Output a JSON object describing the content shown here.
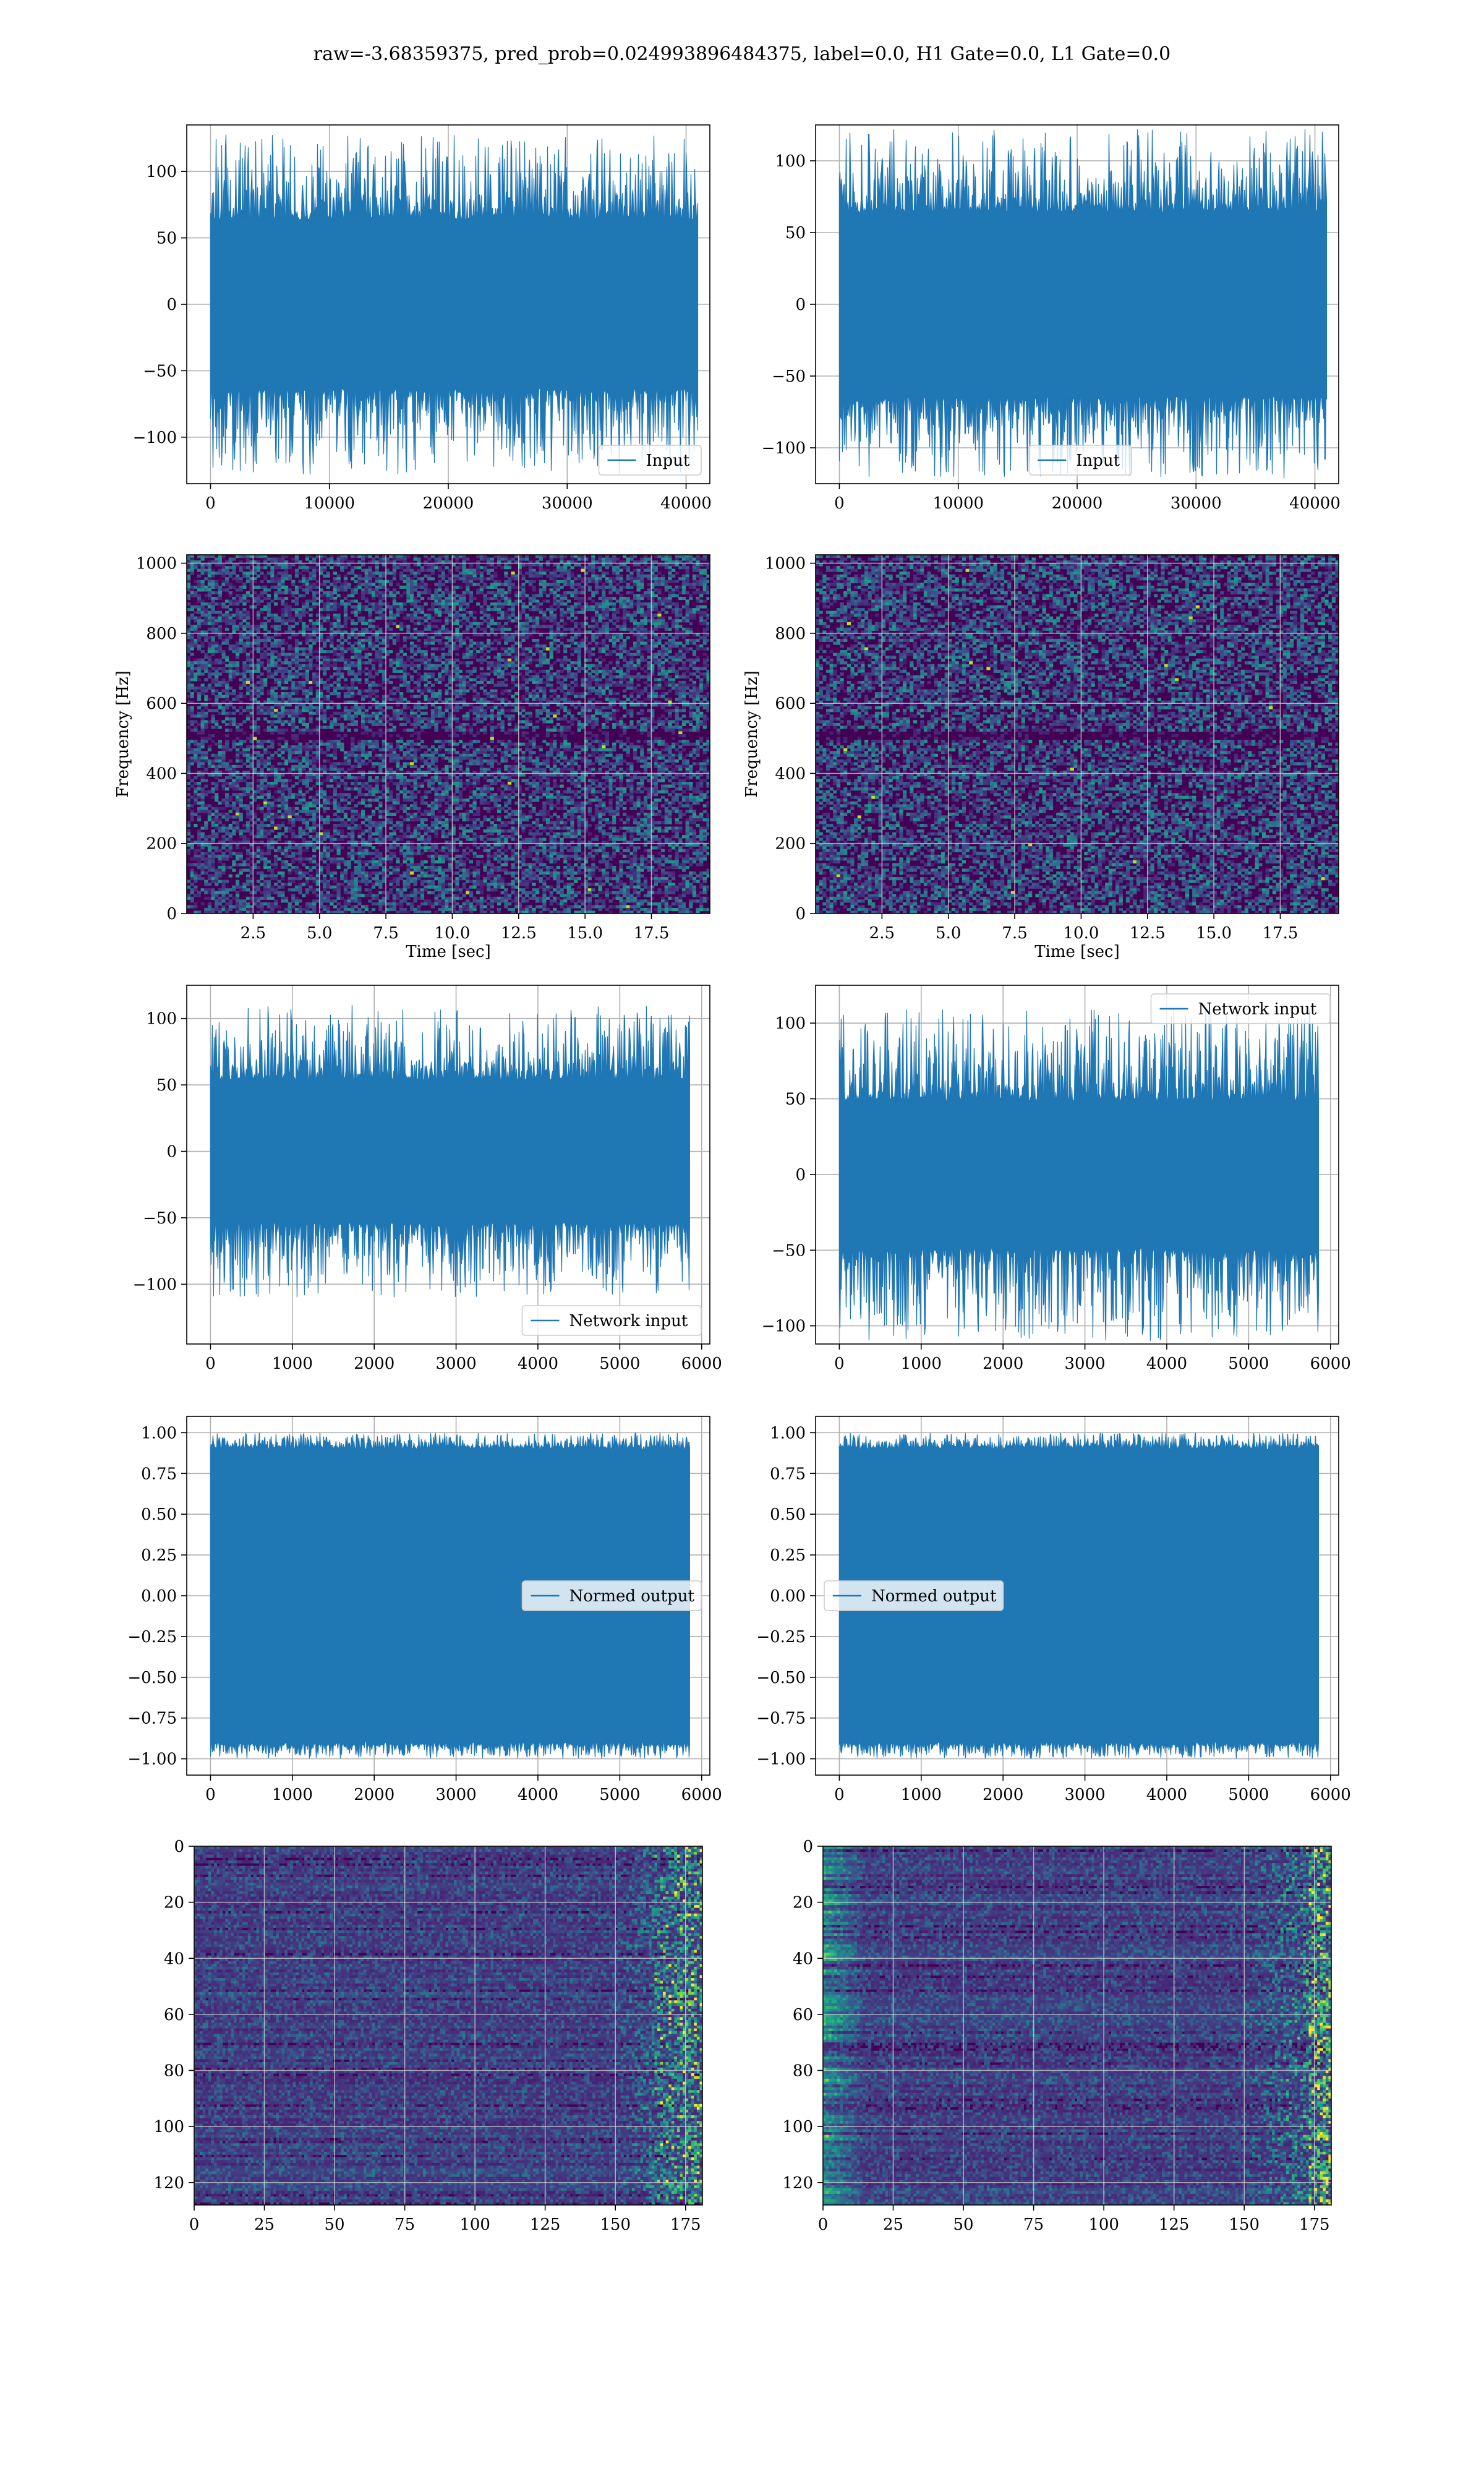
{
  "suptitle": "raw=-3.68359375, pred_prob=0.024993896484375, label=0.0, H1 Gate=0.0, L1 Gate=0.0",
  "colors": {
    "line": "#1f77b4",
    "grid": "#b0b0b0",
    "viridis_dark": "#440154"
  },
  "chart_data": [
    {
      "id": "input-h1",
      "type": "line",
      "series": [
        {
          "name": "Input"
        }
      ],
      "xlim": [
        -2000,
        42000
      ],
      "ylim": [
        -135,
        135
      ],
      "signal_range": [
        0,
        40960
      ],
      "amplitude": 65,
      "spike": 128,
      "xticks": [
        0,
        10000,
        20000,
        30000,
        40000
      ],
      "yticks": [
        -100,
        -50,
        0,
        50,
        100
      ],
      "legend": {
        "label": "Input",
        "loc": "lower-right"
      },
      "grid": true
    },
    {
      "id": "input-l1",
      "type": "line",
      "series": [
        {
          "name": "Input"
        }
      ],
      "xlim": [
        -2000,
        42000
      ],
      "ylim": [
        -125,
        125
      ],
      "signal_range": [
        0,
        40960
      ],
      "amplitude": 66,
      "spike": 122,
      "xticks": [
        0,
        10000,
        20000,
        30000,
        40000
      ],
      "yticks": [
        -100,
        -50,
        0,
        50,
        100
      ],
      "legend": {
        "label": "Input",
        "loc": "lower-center"
      },
      "grid": true
    },
    {
      "id": "spectrogram-h1",
      "type": "heatmap",
      "xlim": [
        0,
        19.7
      ],
      "ylim": [
        0,
        1024
      ],
      "xticks": [
        2.5,
        5.0,
        7.5,
        10.0,
        12.5,
        15.0,
        17.5
      ],
      "yticks": [
        0,
        200,
        400,
        600,
        800,
        1000
      ],
      "xlabel": "Time [sec]",
      "ylabel": "Frequency [Hz]",
      "grid": true
    },
    {
      "id": "spectrogram-l1",
      "type": "heatmap",
      "xlim": [
        0,
        19.7
      ],
      "ylim": [
        0,
        1024
      ],
      "xticks": [
        2.5,
        5.0,
        7.5,
        10.0,
        12.5,
        15.0,
        17.5
      ],
      "yticks": [
        0,
        200,
        400,
        600,
        800,
        1000
      ],
      "xlabel": "Time [sec]",
      "ylabel": "Frequency [Hz]",
      "grid": true
    },
    {
      "id": "network-input-h1",
      "type": "line",
      "series": [
        {
          "name": "Network input"
        }
      ],
      "xlim": [
        -290,
        6100
      ],
      "ylim": [
        -145,
        125
      ],
      "signal_range": [
        0,
        5850
      ],
      "amplitude": 55,
      "spike": 110,
      "xticks": [
        0,
        1000,
        2000,
        3000,
        4000,
        5000,
        6000
      ],
      "yticks": [
        -100,
        -50,
        0,
        50,
        100
      ],
      "legend": {
        "label": "Network input",
        "loc": "lower-right"
      },
      "grid": true
    },
    {
      "id": "network-input-l1",
      "type": "line",
      "series": [
        {
          "name": "Network input"
        }
      ],
      "xlim": [
        -290,
        6100
      ],
      "ylim": [
        -112,
        125
      ],
      "signal_range": [
        0,
        5850
      ],
      "amplitude": 50,
      "spike": 110,
      "xticks": [
        0,
        1000,
        2000,
        3000,
        4000,
        5000,
        6000
      ],
      "yticks": [
        -100,
        -50,
        0,
        50,
        100
      ],
      "legend": {
        "label": "Network input",
        "loc": "upper-right"
      },
      "grid": true
    },
    {
      "id": "normed-output-h1",
      "type": "line",
      "series": [
        {
          "name": "Normed output"
        }
      ],
      "xlim": [
        -290,
        6100
      ],
      "ylim": [
        -1.1,
        1.1
      ],
      "signal_range": [
        0,
        5850
      ],
      "amplitude": 0.92,
      "spike": 1.0,
      "xticks": [
        0,
        1000,
        2000,
        3000,
        4000,
        5000,
        6000
      ],
      "yticks": [
        -1.0,
        -0.75,
        -0.5,
        -0.25,
        0.0,
        0.25,
        0.5,
        0.75,
        1.0
      ],
      "legend": {
        "label": "Normed output",
        "loc": "center-right"
      },
      "grid": true
    },
    {
      "id": "normed-output-l1",
      "type": "line",
      "series": [
        {
          "name": "Normed output"
        }
      ],
      "xlim": [
        -290,
        6100
      ],
      "ylim": [
        -1.1,
        1.1
      ],
      "signal_range": [
        0,
        5850
      ],
      "amplitude": 0.92,
      "spike": 1.0,
      "xticks": [
        0,
        1000,
        2000,
        3000,
        4000,
        5000,
        6000
      ],
      "yticks": [
        -1.0,
        -0.75,
        -0.5,
        -0.25,
        0.0,
        0.25,
        0.5,
        0.75,
        1.0
      ],
      "legend": {
        "label": "Normed output",
        "loc": "center-left"
      },
      "grid": true
    },
    {
      "id": "feature-map-h1",
      "type": "heatmap",
      "xlim": [
        0,
        181
      ],
      "ylim": [
        128,
        0
      ],
      "xticks": [
        0,
        25,
        50,
        75,
        100,
        125,
        150,
        175
      ],
      "yticks": [
        0,
        20,
        40,
        60,
        80,
        100,
        120
      ],
      "grid": true
    },
    {
      "id": "feature-map-l1",
      "type": "heatmap",
      "xlim": [
        0,
        181
      ],
      "ylim": [
        128,
        0
      ],
      "xticks": [
        0,
        25,
        50,
        75,
        100,
        125,
        150,
        175
      ],
      "yticks": [
        0,
        20,
        40,
        60,
        80,
        100,
        120
      ],
      "grid": true
    }
  ]
}
